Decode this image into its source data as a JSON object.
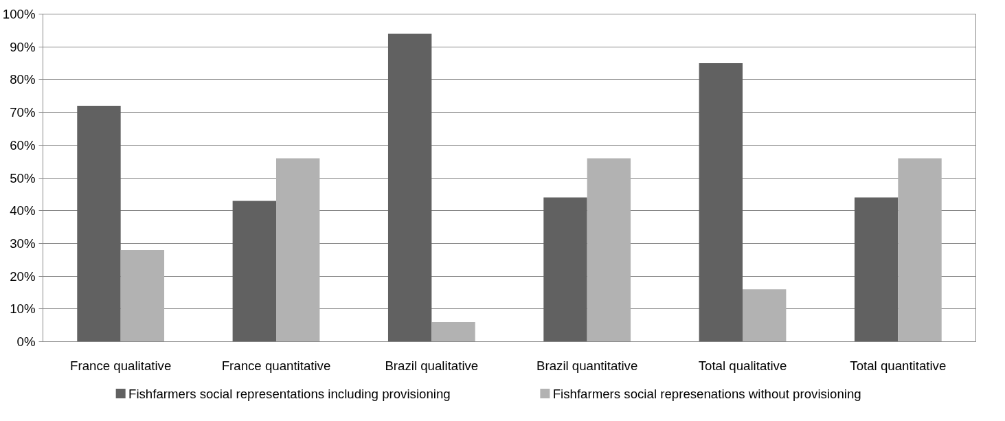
{
  "chart_data": {
    "type": "bar",
    "categories": [
      "France qualitative",
      "France quantitative",
      "Brazil qualitative",
      "Brazil quantitative",
      "Total qualitative",
      "Total quantitative"
    ],
    "series": [
      {
        "name": "Fishfarmers  social representations including provisioning",
        "color": "#616161",
        "values": [
          72,
          43,
          94,
          44,
          85,
          44
        ]
      },
      {
        "name": "Fishfarmers  social  represenations without provisioning",
        "color": "#b2b2b2",
        "values": [
          28,
          56,
          6,
          56,
          16,
          56
        ]
      }
    ],
    "ylim": [
      0,
      100
    ],
    "yticks": [
      {
        "value": 0,
        "label": "0%"
      },
      {
        "value": 10,
        "label": "10%"
      },
      {
        "value": 20,
        "label": "20%"
      },
      {
        "value": 30,
        "label": "30%"
      },
      {
        "value": 40,
        "label": "40%"
      },
      {
        "value": 50,
        "label": "50%"
      },
      {
        "value": 60,
        "label": "60%"
      },
      {
        "value": 70,
        "label": "70%"
      },
      {
        "value": 80,
        "label": "80%"
      },
      {
        "value": 90,
        "label": "90%"
      },
      {
        "value": 100,
        "label": "100%"
      }
    ],
    "grid": "y",
    "legend": "bottom"
  }
}
